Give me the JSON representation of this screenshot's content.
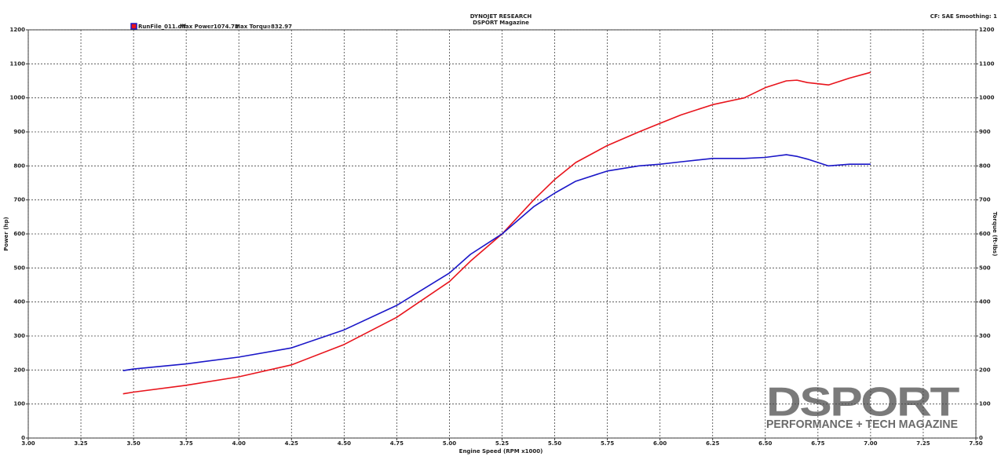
{
  "chart_data": {
    "type": "line",
    "title": "DYNOJET RESEARCH",
    "subtitle": "DSPORT Magazine",
    "settings_label": "CF: SAE  Smoothing: 1",
    "legend": {
      "run": "RunFile_011.dlf",
      "power_label": "Max Power",
      "max_power": 1074.72,
      "torque_label": "Max Torque",
      "max_torque": 832.97
    },
    "xlabel": "Engine Speed (RPM x1000)",
    "ylabel": "Power (hp)",
    "y2label": "Torque (ft-lbs)",
    "x": [
      3.45,
      3.5,
      3.75,
      4.0,
      4.25,
      4.5,
      4.75,
      5.0,
      5.1,
      5.25,
      5.4,
      5.5,
      5.6,
      5.75,
      5.9,
      6.0,
      6.1,
      6.25,
      6.4,
      6.5,
      6.6,
      6.65,
      6.7,
      6.8,
      6.9,
      7.0
    ],
    "series": [
      {
        "name": "Power",
        "color": "#e8141c",
        "values": [
          130,
          135,
          155,
          180,
          215,
          275,
          355,
          460,
          520,
          600,
          700,
          760,
          810,
          860,
          900,
          925,
          950,
          980,
          1000,
          1030,
          1050,
          1052,
          1045,
          1038,
          1058,
          1075
        ]
      },
      {
        "name": "Torque",
        "color": "#1a16c8",
        "axis": "y2",
        "values": [
          198,
          203,
          218,
          238,
          265,
          318,
          390,
          485,
          540,
          600,
          680,
          720,
          755,
          785,
          800,
          805,
          812,
          822,
          822,
          825,
          833,
          828,
          820,
          800,
          805,
          805
        ]
      }
    ],
    "xlim": [
      3.0,
      7.5
    ],
    "xticks": [
      {
        "value": 3.0,
        "label": "3.00"
      },
      {
        "value": 3.25,
        "label": "3.25"
      },
      {
        "value": 3.5,
        "label": "3.50"
      },
      {
        "value": 3.75,
        "label": "3.75"
      },
      {
        "value": 4.0,
        "label": "4.00"
      },
      {
        "value": 4.25,
        "label": "4.25"
      },
      {
        "value": 4.5,
        "label": "4.50"
      },
      {
        "value": 4.75,
        "label": "4.75"
      },
      {
        "value": 5.0,
        "label": "5.00"
      },
      {
        "value": 5.25,
        "label": "5.25"
      },
      {
        "value": 5.5,
        "label": "5.50"
      },
      {
        "value": 5.75,
        "label": "5.75"
      },
      {
        "value": 6.0,
        "label": "6.00"
      },
      {
        "value": 6.25,
        "label": "6.25"
      },
      {
        "value": 6.5,
        "label": "6.50"
      },
      {
        "value": 6.75,
        "label": "6.75"
      },
      {
        "value": 7.0,
        "label": "7.00"
      },
      {
        "value": 7.25,
        "label": "7.25"
      },
      {
        "value": 7.5,
        "label": "7.50"
      }
    ],
    "ylim": [
      0,
      1200
    ],
    "yticks": [
      0,
      100,
      200,
      300,
      400,
      500,
      600,
      700,
      800,
      900,
      1000,
      1100,
      1200
    ],
    "y2lim": [
      0,
      1200
    ],
    "y2ticks": [
      0,
      100,
      200,
      300,
      400,
      500,
      600,
      700,
      800,
      900,
      1000,
      1100,
      1200
    ],
    "grid": true,
    "logo": {
      "title": "DSPORT",
      "subtitle": "PERFORMANCE + TECH MAGAZINE"
    }
  }
}
